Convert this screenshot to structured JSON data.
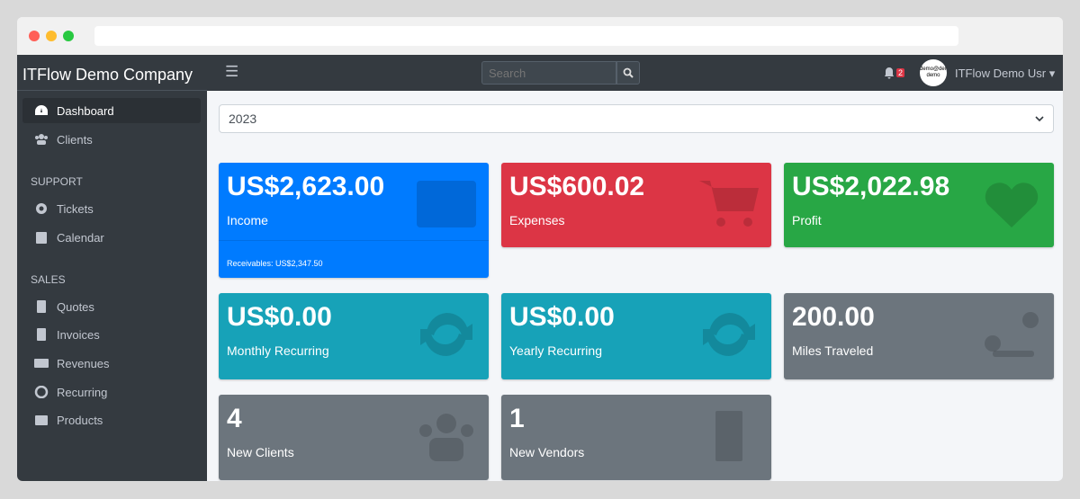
{
  "browser": {
    "title": ""
  },
  "sidebar": {
    "brand": "ITFlow Demo Company",
    "items": [
      {
        "label": "Dashboard",
        "icon": "tachometer-icon"
      },
      {
        "label": "Clients",
        "icon": "users-icon"
      }
    ],
    "support_header": "SUPPORT",
    "support": [
      {
        "label": "Tickets",
        "icon": "life-ring-icon"
      },
      {
        "label": "Calendar",
        "icon": "calendar-icon"
      }
    ],
    "sales_header": "SALES",
    "sales": [
      {
        "label": "Quotes",
        "icon": "file-icon"
      },
      {
        "label": "Invoices",
        "icon": "invoice-icon"
      },
      {
        "label": "Revenues",
        "icon": "credit-card-icon"
      },
      {
        "label": "Recurring",
        "icon": "sync-icon"
      },
      {
        "label": "Products",
        "icon": "box-icon"
      }
    ]
  },
  "topbar": {
    "search_placeholder": "Search",
    "notifications": "2",
    "avatar_text": "demo@demo demo",
    "user": "ITFlow Demo Usr"
  },
  "year_select": "2023",
  "cards": [
    {
      "value": "US$2,623.00",
      "label": "Income",
      "footer": "Receivables: US$2,347.50",
      "color": "#007bff",
      "icon": "credit-card-icon"
    },
    {
      "value": "US$600.02",
      "label": "Expenses",
      "color": "#dc3545",
      "icon": "cart-icon"
    },
    {
      "value": "US$2,022.98",
      "label": "Profit",
      "color": "#28a745",
      "icon": "heart-icon"
    },
    {
      "value": "US$0.00",
      "label": "Monthly Recurring",
      "color": "#17a2b8",
      "icon": "sync-icon"
    },
    {
      "value": "US$0.00",
      "label": "Yearly Recurring",
      "color": "#17a2b8",
      "icon": "sync-icon"
    },
    {
      "value": "200.00",
      "label": "Miles Traveled",
      "color": "#6c757d",
      "icon": "route-icon"
    },
    {
      "value": "4",
      "label": "New Clients",
      "color": "#6c757d",
      "icon": "users-icon"
    },
    {
      "value": "1",
      "label": "New Vendors",
      "color": "#6c757d",
      "icon": "building-icon"
    }
  ]
}
